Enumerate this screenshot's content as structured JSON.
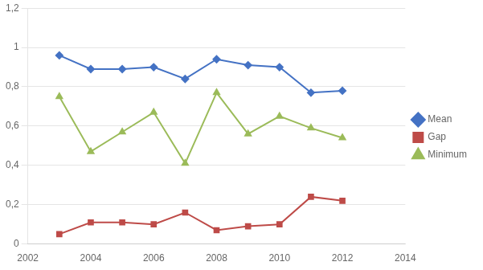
{
  "chart_data": {
    "type": "line",
    "x": [
      2003,
      2004,
      2005,
      2006,
      2007,
      2008,
      2009,
      2010,
      2011,
      2012
    ],
    "series": [
      {
        "name": "Mean",
        "color": "#4472C4",
        "marker": "diamond",
        "values": [
          0.96,
          0.89,
          0.89,
          0.9,
          0.84,
          0.94,
          0.91,
          0.9,
          0.77,
          0.78
        ]
      },
      {
        "name": "Gap",
        "color": "#BE4B48",
        "marker": "square",
        "values": [
          0.05,
          0.11,
          0.11,
          0.1,
          0.16,
          0.07,
          0.09,
          0.1,
          0.24,
          0.22
        ]
      },
      {
        "name": "Minimum",
        "color": "#9BBB59",
        "marker": "triangle",
        "values": [
          0.75,
          0.47,
          0.57,
          0.67,
          0.41,
          0.77,
          0.56,
          0.65,
          0.59,
          0.54
        ]
      }
    ],
    "xlim": [
      2002,
      2014
    ],
    "xticks": [
      2002,
      2004,
      2006,
      2008,
      2010,
      2012,
      2014
    ],
    "ylim": [
      0,
      1.2
    ],
    "yticks": [
      0,
      {
        "value": 0.2,
        "label": "0,2"
      },
      {
        "value": 0.4,
        "label": "0,4"
      },
      {
        "value": 0.6,
        "label": "0,6"
      },
      {
        "value": 0.8,
        "label": "0,8"
      },
      1,
      {
        "value": 1.2,
        "label": "1,2"
      }
    ],
    "grid": "y",
    "legend": "right"
  }
}
